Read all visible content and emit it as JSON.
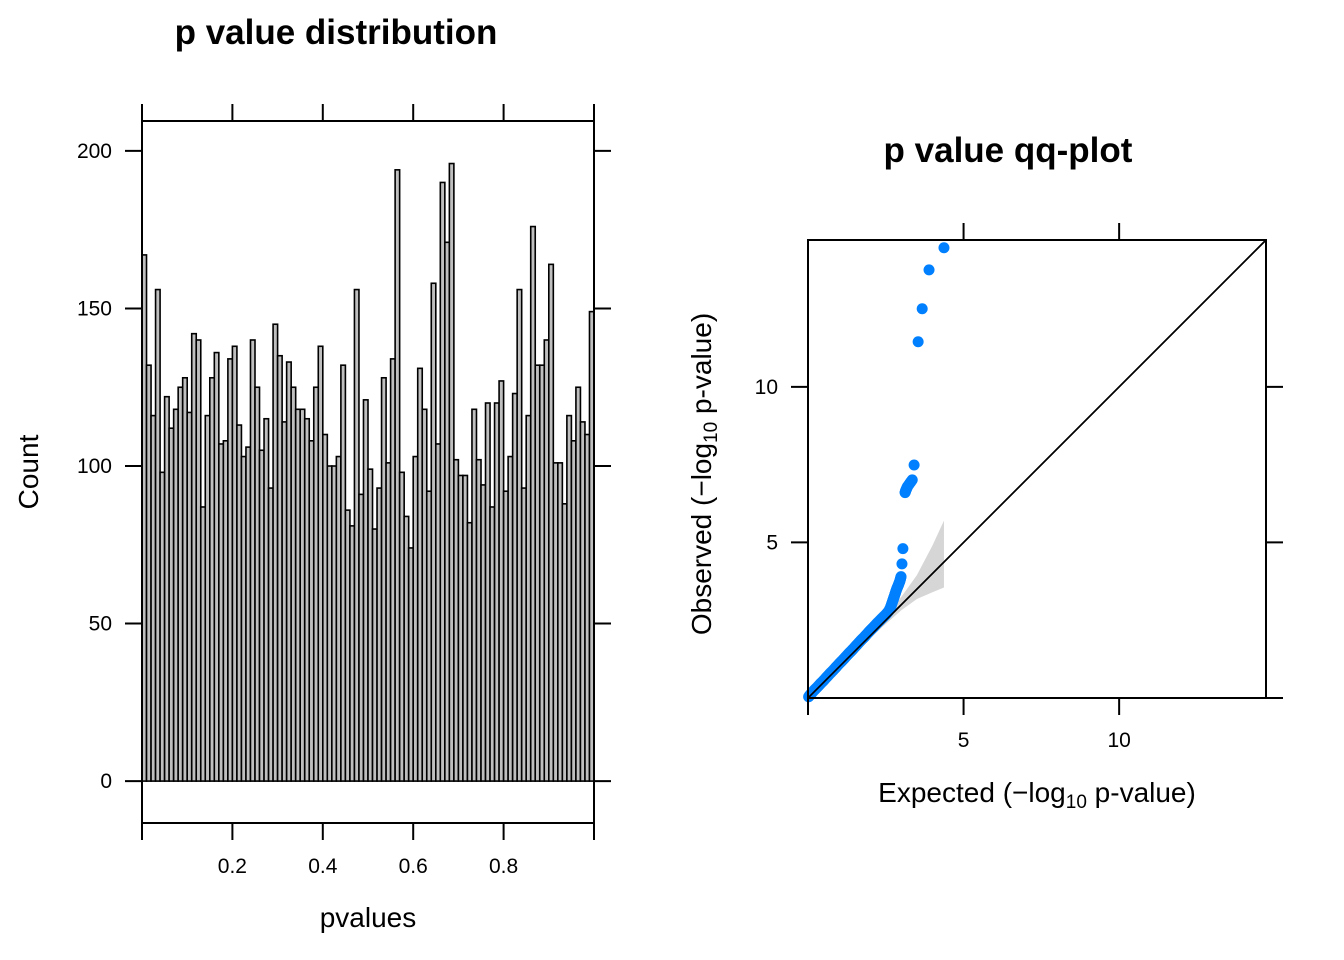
{
  "chart_data": [
    {
      "type": "bar",
      "title": "p value distribution",
      "xlabel": "pvalues",
      "ylabel": "Count",
      "xlim": [
        0,
        1
      ],
      "ylim": [
        -13.3,
        209.5
      ],
      "bin_width": 0.01,
      "x_ticks": [
        0,
        0.2,
        0.4,
        0.6,
        0.8,
        1.0
      ],
      "x_tick_labels": [
        "",
        "0.2",
        "0.4",
        "0.6",
        "0.8",
        ""
      ],
      "y_ticks": [
        0,
        50,
        100,
        150,
        200
      ],
      "y_tick_labels": [
        "0",
        "50",
        "100",
        "150",
        "200"
      ],
      "grid": false,
      "bar_fill": "#bfbfbf",
      "values": [
        167,
        132,
        116,
        156,
        98,
        122,
        112,
        118,
        125,
        128,
        117,
        142,
        140,
        87,
        116,
        128,
        136,
        107,
        108,
        134,
        138,
        113,
        103,
        106,
        140,
        125,
        105,
        115,
        93,
        145,
        135,
        114,
        133,
        125,
        118,
        118,
        115,
        108,
        125,
        138,
        110,
        100,
        100,
        103,
        132,
        86,
        81,
        156,
        91,
        121,
        99,
        80,
        93,
        128,
        101,
        134,
        194,
        98,
        84,
        74,
        103,
        131,
        118,
        92,
        158,
        107,
        190,
        171,
        196,
        102,
        97,
        97,
        82,
        118,
        102,
        94,
        120,
        87,
        120,
        127,
        92,
        103,
        123,
        156,
        93,
        116,
        176,
        132,
        132,
        140,
        164,
        101,
        101,
        88,
        116,
        108,
        125,
        114,
        110,
        149
      ]
    },
    {
      "type": "scatter",
      "title": "p value qq-plot",
      "xlabel": "Expected (−log10 p-value)",
      "ylabel": "Observed (−log10 p-value)",
      "xlabel_parts": {
        "pre": "Expected (−log",
        "sub": "10",
        "post": " p-value)"
      },
      "ylabel_parts": {
        "pre": "Observed (−log",
        "sub": "10",
        "post": " p-value)"
      },
      "xlim": [
        0,
        14.72
      ],
      "ylim": [
        0,
        14.72
      ],
      "x_ticks": [
        5,
        10
      ],
      "x_tick_labels": [
        "5",
        "10"
      ],
      "y_ticks": [
        5,
        10
      ],
      "y_tick_labels": [
        "5",
        "10"
      ],
      "grid": false,
      "point_color": "#0080ff",
      "reference_line": {
        "from": [
          0,
          0
        ],
        "to": [
          14.72,
          14.72
        ]
      },
      "confidence_band": {
        "x": [
          0,
          1.0,
          2.0,
          2.5,
          3.0,
          3.5,
          4.0,
          4.37
        ],
        "upper": [
          0,
          1.02,
          2.07,
          2.65,
          3.25,
          3.95,
          4.9,
          5.7
        ],
        "lower": [
          0,
          0.98,
          1.93,
          2.38,
          2.82,
          3.18,
          3.4,
          3.55
        ]
      },
      "points": {
        "x": [
          0.02,
          0.1,
          0.2,
          0.3,
          0.4,
          0.5,
          0.6,
          0.7,
          0.8,
          0.9,
          1.0,
          1.1,
          1.2,
          1.3,
          1.4,
          1.5,
          1.6,
          1.7,
          1.8,
          1.9,
          2.0,
          2.1,
          2.2,
          2.3,
          2.4,
          2.5,
          2.6,
          2.65,
          2.7,
          2.75,
          2.8,
          2.85,
          2.9,
          2.95,
          2.99,
          3.02,
          3.05,
          3.12,
          3.15,
          3.2,
          3.35,
          3.41,
          3.54,
          3.67,
          3.89,
          4.37
        ],
        "y": [
          0.04,
          0.14,
          0.25,
          0.35,
          0.46,
          0.56,
          0.67,
          0.78,
          0.88,
          0.99,
          1.1,
          1.2,
          1.31,
          1.42,
          1.52,
          1.63,
          1.74,
          1.85,
          1.95,
          2.06,
          2.17,
          2.27,
          2.38,
          2.48,
          2.58,
          2.68,
          2.8,
          2.9,
          3.05,
          3.2,
          3.35,
          3.5,
          3.62,
          3.75,
          3.9,
          4.31,
          4.8,
          6.6,
          6.69,
          6.8,
          7.01,
          7.49,
          11.45,
          12.51,
          13.76,
          14.47
        ]
      }
    }
  ]
}
